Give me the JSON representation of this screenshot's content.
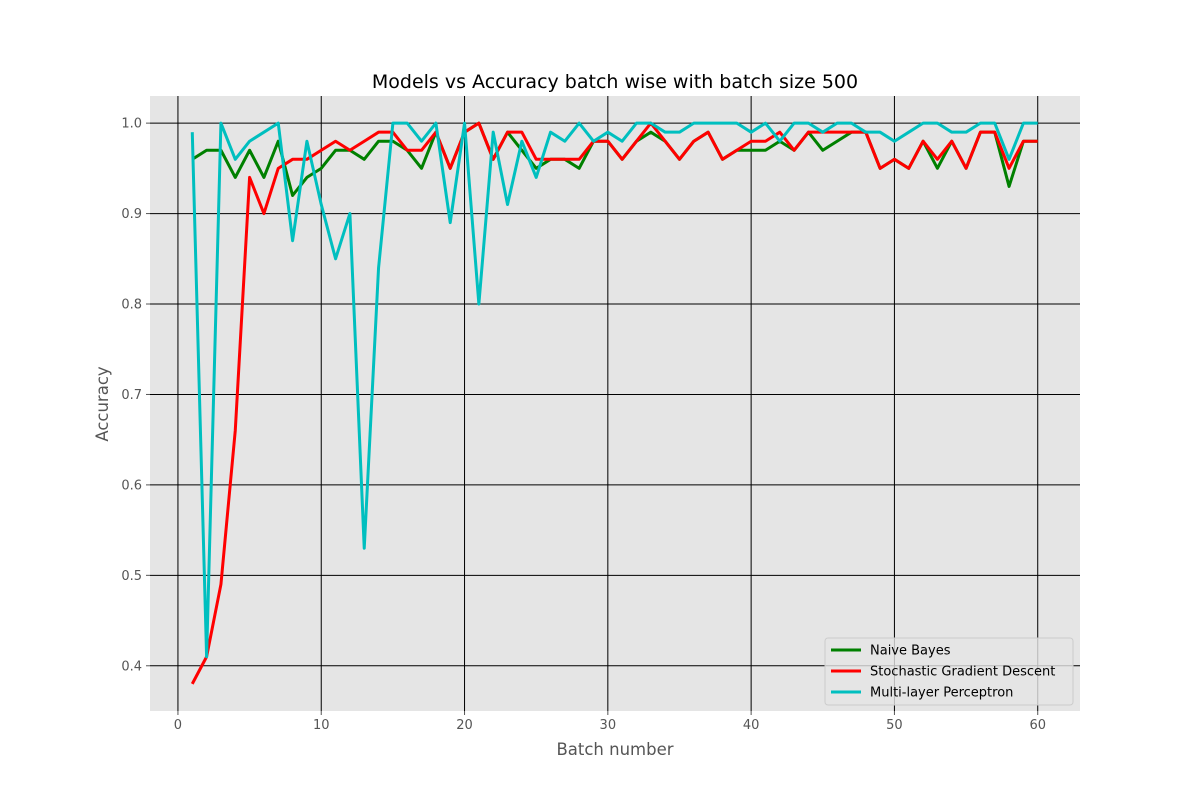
{
  "chart_data": {
    "type": "line",
    "title": "Models vs Accuracy batch wise with batch size 500",
    "xlabel": "Batch number",
    "ylabel": "Accuracy",
    "xlim": [
      -1.95,
      62.95
    ],
    "ylim": [
      0.35,
      1.03
    ],
    "xticks": [
      0,
      10,
      20,
      30,
      40,
      50,
      60
    ],
    "yticks": [
      0.4,
      0.5,
      0.6,
      0.7,
      0.8,
      0.9,
      1.0
    ],
    "xtick_labels": [
      "0",
      "10",
      "20",
      "30",
      "40",
      "50",
      "60"
    ],
    "ytick_labels": [
      "0.4",
      "0.5",
      "0.6",
      "0.7",
      "0.8",
      "0.9",
      "1.0"
    ],
    "grid": true,
    "legend_position": "bottom-right",
    "x": [
      1,
      2,
      3,
      4,
      5,
      6,
      7,
      8,
      9,
      10,
      11,
      12,
      13,
      14,
      15,
      16,
      17,
      18,
      19,
      20,
      21,
      22,
      23,
      24,
      25,
      26,
      27,
      28,
      29,
      30,
      31,
      32,
      33,
      34,
      35,
      36,
      37,
      38,
      39,
      40,
      41,
      42,
      43,
      44,
      45,
      46,
      47,
      48,
      49,
      50,
      51,
      52,
      53,
      54,
      55,
      56,
      57,
      58,
      59,
      60
    ],
    "series": [
      {
        "name": "Naive Bayes",
        "color": "#008000",
        "values": [
          0.96,
          0.97,
          0.97,
          0.94,
          0.97,
          0.94,
          0.98,
          0.92,
          0.94,
          0.95,
          0.97,
          0.97,
          0.96,
          0.98,
          0.98,
          0.97,
          0.95,
          0.99,
          0.95,
          0.99,
          1.0,
          0.96,
          0.99,
          0.97,
          0.95,
          0.96,
          0.96,
          0.95,
          0.98,
          0.98,
          0.96,
          0.98,
          0.99,
          0.98,
          0.96,
          0.98,
          0.99,
          0.96,
          0.97,
          0.97,
          0.97,
          0.98,
          0.97,
          0.99,
          0.97,
          0.98,
          0.99,
          0.99,
          0.95,
          0.96,
          0.95,
          0.98,
          0.95,
          0.98,
          0.95,
          0.99,
          0.99,
          0.93,
          0.98,
          0.98
        ]
      },
      {
        "name": "Stochastic Gradient Descent",
        "color": "#ff0000",
        "values": [
          0.38,
          0.41,
          0.49,
          0.66,
          0.94,
          0.9,
          0.95,
          0.96,
          0.96,
          0.97,
          0.98,
          0.97,
          0.98,
          0.99,
          0.99,
          0.97,
          0.97,
          0.99,
          0.95,
          0.99,
          1.0,
          0.96,
          0.99,
          0.99,
          0.96,
          0.96,
          0.96,
          0.96,
          0.98,
          0.98,
          0.96,
          0.98,
          1.0,
          0.98,
          0.96,
          0.98,
          0.99,
          0.96,
          0.97,
          0.98,
          0.98,
          0.99,
          0.97,
          0.99,
          0.99,
          0.99,
          0.99,
          0.99,
          0.95,
          0.96,
          0.95,
          0.98,
          0.96,
          0.98,
          0.95,
          0.99,
          0.99,
          0.95,
          0.98,
          0.98
        ]
      },
      {
        "name": "Multi-layer Perceptron",
        "color": "#00bfbf",
        "values": [
          0.99,
          0.41,
          1.0,
          0.96,
          0.98,
          0.99,
          1.0,
          0.87,
          0.98,
          0.91,
          0.85,
          0.9,
          0.53,
          0.84,
          1.0,
          1.0,
          0.98,
          1.0,
          0.89,
          1.0,
          0.8,
          0.99,
          0.91,
          0.98,
          0.94,
          0.99,
          0.98,
          1.0,
          0.98,
          0.99,
          0.98,
          1.0,
          1.0,
          0.99,
          0.99,
          1.0,
          1.0,
          1.0,
          1.0,
          0.99,
          1.0,
          0.98,
          1.0,
          1.0,
          0.99,
          1.0,
          1.0,
          0.99,
          0.99,
          0.98,
          0.99,
          1.0,
          1.0,
          0.99,
          0.99,
          1.0,
          1.0,
          0.96,
          1.0,
          1.0
        ]
      }
    ]
  }
}
